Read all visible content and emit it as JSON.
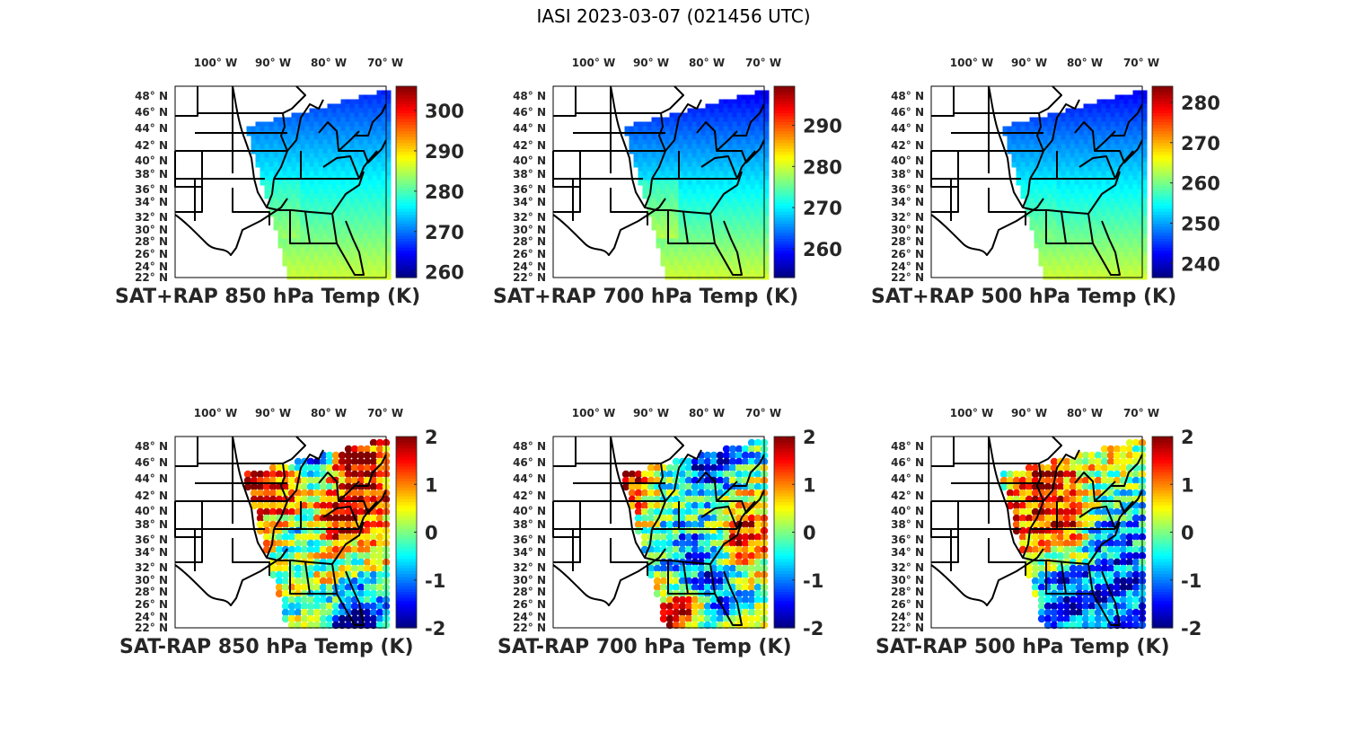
{
  "figure_title": "IASI 2023-03-07 (021456 UTC)",
  "chart_data": [
    {
      "type": "heatmap",
      "title": "SAT+RAP 850 hPa Temp (K)",
      "xlabel": "",
      "ylabel": "",
      "x_ticks": [
        "100° W",
        "90° W",
        "80° W",
        "70° W"
      ],
      "y_ticks": [
        "48° N",
        "46° N",
        "44° N",
        "42° N",
        "40° N",
        "38° N",
        "36° N",
        "34° N",
        "32° N",
        "30° N",
        "28° N",
        "26° N",
        "24° N",
        "22° N"
      ],
      "xlim": [
        -107,
        -69
      ],
      "ylim": [
        22,
        49.5
      ],
      "colorbar": {
        "ticks": [
          260,
          270,
          280,
          290,
          300
        ],
        "range": [
          258.6,
          306
        ],
        "colormap": "jet"
      },
      "field": {
        "north_value": 266,
        "south_value": 286,
        "southwest_value": 288
      }
    },
    {
      "type": "heatmap",
      "title": "SAT+RAP 700 hPa Temp (K)",
      "x_ticks": [
        "100° W",
        "90° W",
        "80° W",
        "70° W"
      ],
      "y_ticks": [
        "48° N",
        "46° N",
        "44° N",
        "42° N",
        "40° N",
        "38° N",
        "36° N",
        "34° N",
        "32° N",
        "30° N",
        "28° N",
        "26° N",
        "24° N",
        "22° N"
      ],
      "xlim": [
        -107,
        -69
      ],
      "ylim": [
        22,
        49.5
      ],
      "colorbar": {
        "ticks": [
          260,
          270,
          280,
          290
        ],
        "range": [
          253,
          299.5
        ],
        "colormap": "jet"
      },
      "field": {
        "north_value": 258,
        "south_value": 280,
        "southwest_value": 284
      }
    },
    {
      "type": "heatmap",
      "title": "SAT+RAP 500 hPa Temp (K)",
      "x_ticks": [
        "100° W",
        "90° W",
        "80° W",
        "70° W"
      ],
      "y_ticks": [
        "48° N",
        "46° N",
        "44° N",
        "42° N",
        "40° N",
        "38° N",
        "36° N",
        "34° N",
        "32° N",
        "30° N",
        "28° N",
        "26° N",
        "24° N",
        "22° N"
      ],
      "xlim": [
        -107,
        -69
      ],
      "ylim": [
        22,
        49.5
      ],
      "colorbar": {
        "ticks": [
          240,
          250,
          260,
          270,
          280
        ],
        "range": [
          236.5,
          284
        ],
        "colormap": "jet"
      },
      "field": {
        "north_value": 242,
        "south_value": 264,
        "southwest_value": 265
      }
    },
    {
      "type": "scatter",
      "title": "SAT-RAP 850 hPa Temp (K)",
      "x_ticks": [
        "100° W",
        "90° W",
        "80° W",
        "70° W"
      ],
      "y_ticks": [
        "48° N",
        "46° N",
        "44° N",
        "42° N",
        "40° N",
        "38° N",
        "36° N",
        "34° N",
        "32° N",
        "30° N",
        "28° N",
        "26° N",
        "24° N",
        "22° N"
      ],
      "xlim": [
        -107,
        -69
      ],
      "ylim": [
        22,
        49.5
      ],
      "colorbar": {
        "ticks": [
          -2,
          -1,
          0,
          1,
          2
        ],
        "range": [
          -2,
          2
        ],
        "colormap": "jet"
      },
      "regions": [
        {
          "lon": -94,
          "lat": 43,
          "value": 2
        },
        {
          "lon": -88,
          "lat": 41,
          "value": 1.5
        },
        {
          "lon": -75,
          "lat": 46,
          "value": 2
        },
        {
          "lon": -82,
          "lat": 46,
          "value": -1.5
        },
        {
          "lon": -77,
          "lat": 38,
          "value": 2
        },
        {
          "lon": -85,
          "lat": 35,
          "value": -0.5
        },
        {
          "lon": -80,
          "lat": 28,
          "value": 0.3
        },
        {
          "lon": -76,
          "lat": 24,
          "value": -2
        }
      ]
    },
    {
      "type": "scatter",
      "title": "SAT-RAP 700 hPa Temp (K)",
      "x_ticks": [
        "100° W",
        "90° W",
        "80° W",
        "70° W"
      ],
      "y_ticks": [
        "48° N",
        "46° N",
        "44° N",
        "42° N",
        "40° N",
        "38° N",
        "36° N",
        "34° N",
        "32° N",
        "30° N",
        "28° N",
        "26° N",
        "24° N",
        "22° N"
      ],
      "xlim": [
        -107,
        -69
      ],
      "ylim": [
        22,
        49.5
      ],
      "colorbar": {
        "ticks": [
          -2,
          -1,
          0,
          1,
          2
        ],
        "range": [
          -2,
          2
        ],
        "colormap": "jet"
      },
      "regions": [
        {
          "lon": -93,
          "lat": 43,
          "value": 1.8
        },
        {
          "lon": -86,
          "lat": 40,
          "value": -0.3
        },
        {
          "lon": -80,
          "lat": 46,
          "value": -1.8
        },
        {
          "lon": -73,
          "lat": 35,
          "value": 1.8
        },
        {
          "lon": -82,
          "lat": 32,
          "value": -1.5
        },
        {
          "lon": -84,
          "lat": 24,
          "value": 1.8
        },
        {
          "lon": -78,
          "lat": 28,
          "value": -1.6
        }
      ]
    },
    {
      "type": "scatter",
      "title": "SAT-RAP 500 hPa Temp (K)",
      "x_ticks": [
        "100° W",
        "90° W",
        "80° W",
        "70° W"
      ],
      "y_ticks": [
        "48° N",
        "46° N",
        "44° N",
        "42° N",
        "40° N",
        "38° N",
        "36° N",
        "34° N",
        "32° N",
        "30° N",
        "28° N",
        "26° N",
        "24° N",
        "22° N"
      ],
      "xlim": [
        -107,
        -69
      ],
      "ylim": [
        22,
        49.5
      ],
      "colorbar": {
        "ticks": [
          -2,
          -1,
          0,
          1,
          2
        ],
        "range": [
          -2,
          2
        ],
        "colormap": "jet"
      },
      "regions": [
        {
          "lon": -87,
          "lat": 43,
          "value": 1.8
        },
        {
          "lon": -83,
          "lat": 37,
          "value": 1.7
        },
        {
          "lon": -92,
          "lat": 38,
          "value": 1.3
        },
        {
          "lon": -75,
          "lat": 35,
          "value": -1.2
        },
        {
          "lon": -82,
          "lat": 27,
          "value": -1.6
        },
        {
          "lon": -74,
          "lat": 28,
          "value": -1.5
        },
        {
          "lon": -95,
          "lat": 44,
          "value": 0.2
        }
      ]
    }
  ]
}
